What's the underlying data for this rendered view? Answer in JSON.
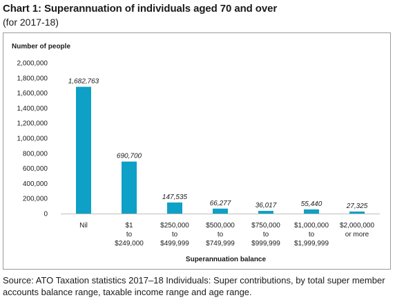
{
  "header": {
    "title": "Chart 1: Superannuation of individuals aged 70 and over",
    "subtitle": "(for 2017-18)"
  },
  "footer": {
    "source": "Source: ATO Taxation statistics 2017–18 Individuals: Super contributions, by total super member accounts balance range, taxable income range and age range."
  },
  "colors": {
    "bar": "#0EA0C6",
    "axis": "#bfbfbf",
    "text": "#1a1a1a"
  },
  "chart_data": {
    "type": "bar",
    "title": "Chart 1: Superannuation of individuals aged 70 and over",
    "subtitle": "(for 2017-18)",
    "ylabel": "Number of people",
    "xlabel": "Superannuation balance",
    "ylim": [
      0,
      2000000
    ],
    "yticks": [
      0,
      200000,
      400000,
      600000,
      800000,
      1000000,
      1200000,
      1400000,
      1600000,
      1800000,
      2000000
    ],
    "ytick_labels": [
      "0",
      "200,000",
      "400,000",
      "600,000",
      "800,000",
      "1,000,000",
      "1,200,000",
      "1,400,000",
      "1,600,000",
      "1,800,000",
      "2,000,000"
    ],
    "categories": [
      [
        "Nil"
      ],
      [
        "$1",
        "to",
        "$249,000"
      ],
      [
        "$250,000",
        "to",
        "$499,999"
      ],
      [
        "$500,000",
        "to",
        "$749,999"
      ],
      [
        "$750,000",
        "to",
        "$999,999"
      ],
      [
        "$1,000,000",
        "to",
        "$1,999,999"
      ],
      [
        "$2,000,000",
        "or more"
      ]
    ],
    "values": [
      1682763,
      690700,
      147535,
      66277,
      36017,
      55440,
      27325
    ],
    "data_labels": [
      "1,682,763",
      "690,700",
      "147,535",
      "66,277",
      "36,017",
      "55,440",
      "27,325"
    ],
    "grid": false,
    "legend": "none"
  }
}
